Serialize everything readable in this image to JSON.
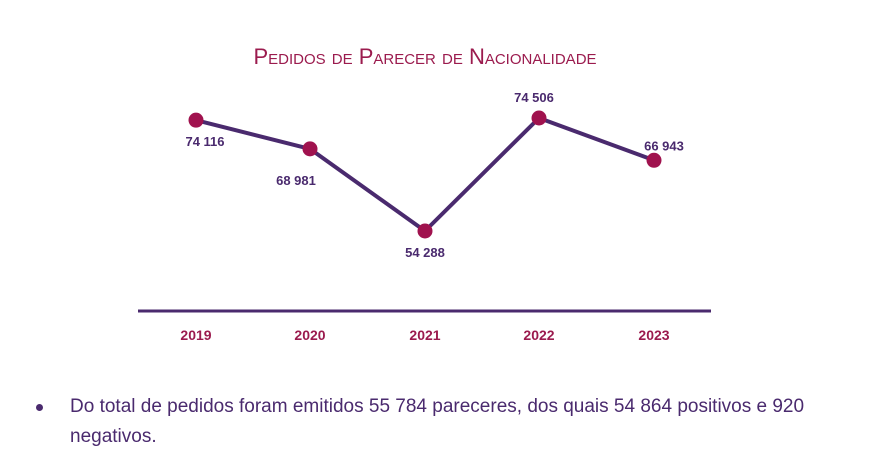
{
  "chart_data": {
    "type": "line",
    "title": "Pedidos de Parecer de Nacionalidade",
    "categories": [
      "2019",
      "2020",
      "2021",
      "2022",
      "2023"
    ],
    "values": [
      74116,
      68981,
      54288,
      74506,
      66943
    ],
    "data_labels": [
      "74 116",
      "68 981",
      "54 288",
      "74 506",
      "66 943"
    ],
    "xlabel": "",
    "ylabel": "",
    "ylim": [
      40000,
      80000
    ],
    "grid": false,
    "line_color": "#4a2a6e",
    "marker_color": "#a0124e",
    "axis_color": "#4a2a6e"
  },
  "note": {
    "text": "Do total de pedidos foram emitidos 55 784 pareceres, dos quais 54 864 positivos e 920 negativos."
  }
}
